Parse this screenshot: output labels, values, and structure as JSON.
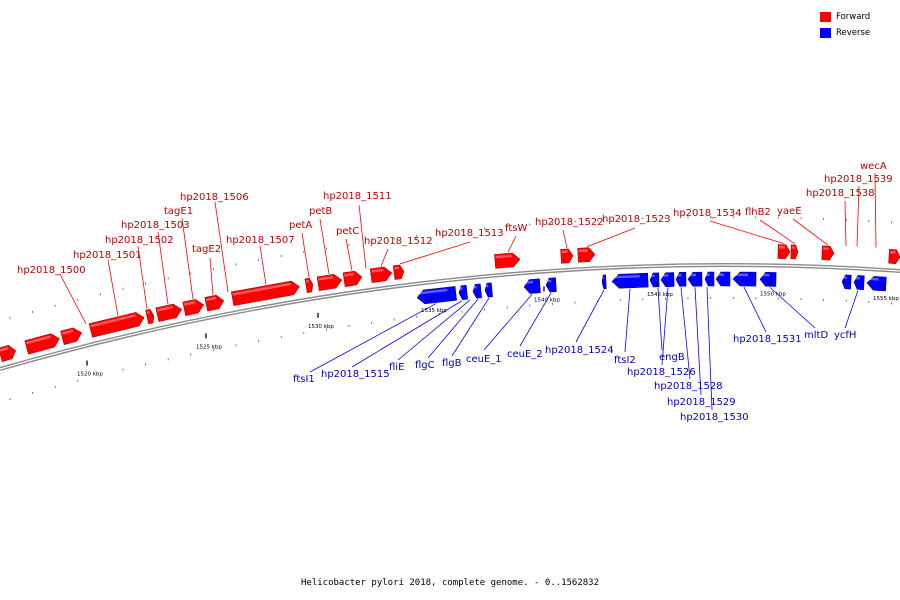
{
  "legend": {
    "forward_label": "Forward",
    "reverse_label": "Reverse",
    "forward_color": "#ff0000",
    "reverse_color": "#0000ff"
  },
  "caption": "Helicobacter pylori 2018, complete genome. - 0..1562832",
  "ticks": [
    {
      "label": "1520 kbp"
    },
    {
      "label": "1525 kbp"
    },
    {
      "label": "1530 kbp"
    },
    {
      "label": "1535 kbp"
    },
    {
      "label": "1540 kbp"
    },
    {
      "label": "1545 kbp"
    },
    {
      "label": "1550 kbp"
    },
    {
      "label": "1555 kbp"
    }
  ],
  "forward_genes": [
    {
      "label": "hp2018_1500"
    },
    {
      "label": "hp2018_1501"
    },
    {
      "label": "hp2018_1502"
    },
    {
      "label": "hp2018_1503"
    },
    {
      "label": "tagE1"
    },
    {
      "label": "tagE2"
    },
    {
      "label": "hp2018_1506"
    },
    {
      "label": "hp2018_1507"
    },
    {
      "label": "petA"
    },
    {
      "label": "petB"
    },
    {
      "label": "petC"
    },
    {
      "label": "hp2018_1511"
    },
    {
      "label": "hp2018_1512"
    },
    {
      "label": "hp2018_1513"
    },
    {
      "label": "ftsW"
    },
    {
      "label": "hp2018_1522"
    },
    {
      "label": "hp2018_1523"
    },
    {
      "label": "hp2018_1534"
    },
    {
      "label": "flhB2"
    },
    {
      "label": "yaeE"
    },
    {
      "label": "hp2018_1538"
    },
    {
      "label": "hp2018_1539"
    },
    {
      "label": "wecA"
    }
  ],
  "reverse_genes": [
    {
      "label": "ftsI1"
    },
    {
      "label": "hp2018_1515"
    },
    {
      "label": "fliE"
    },
    {
      "label": "flgC"
    },
    {
      "label": "flgB"
    },
    {
      "label": "ceuE_1"
    },
    {
      "label": "ceuE_2"
    },
    {
      "label": "hp2018_1524"
    },
    {
      "label": "ftsI2"
    },
    {
      "label": "engB"
    },
    {
      "label": "hp2018_1526"
    },
    {
      "label": "hp2018_1528"
    },
    {
      "label": "hp2018_1529"
    },
    {
      "label": "hp2018_1530"
    },
    {
      "label": "hp2018_1531"
    },
    {
      "label": "mltD"
    },
    {
      "label": "ycfH"
    }
  ]
}
